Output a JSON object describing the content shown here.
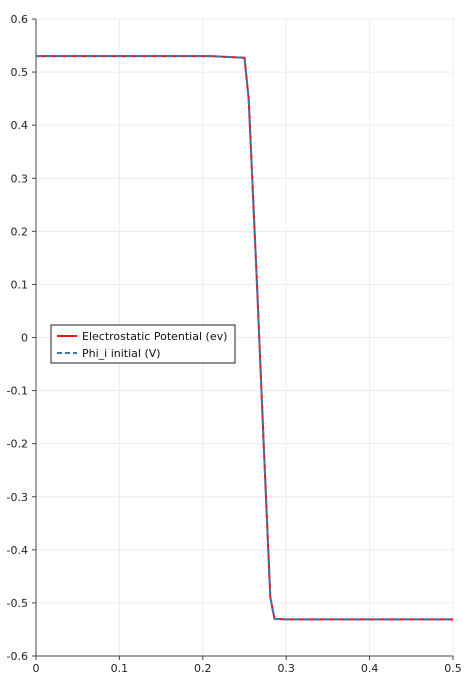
{
  "chart_data": {
    "type": "line",
    "title": "",
    "xlabel": "",
    "ylabel": "",
    "xlim": [
      0,
      0.5
    ],
    "ylim": [
      -0.6,
      0.6
    ],
    "x_ticks": [
      "0",
      "0.1",
      "0.2",
      "0.3",
      "0.4",
      "0.5"
    ],
    "y_ticks": [
      "0.6",
      "0.5",
      "0.4",
      "0.3",
      "0.2",
      "0.1",
      "0",
      "-0.1",
      "-0.2",
      "-0.3",
      "-0.4",
      "-0.5",
      "-0.6"
    ],
    "grid": true,
    "legend_position": "center-left",
    "series": [
      {
        "name": "Electrostatic Potential (ev)",
        "color": "#e8131b",
        "style": "solid",
        "points": [
          [
            0,
            0.53
          ],
          [
            0.21,
            0.53
          ],
          [
            0.25,
            0.527
          ],
          [
            0.255,
            0.45
          ],
          [
            0.265,
            0.1
          ],
          [
            0.273,
            -0.2
          ],
          [
            0.281,
            -0.49
          ],
          [
            0.286,
            -0.53
          ],
          [
            0.3,
            -0.531
          ],
          [
            0.5,
            -0.531
          ]
        ]
      },
      {
        "name": "Phi_i initial (V)",
        "color": "#3a78b6",
        "style": "dashed",
        "points": [
          [
            0,
            0.53
          ],
          [
            0.21,
            0.53
          ],
          [
            0.25,
            0.527
          ],
          [
            0.255,
            0.45
          ],
          [
            0.265,
            0.1
          ],
          [
            0.273,
            -0.2
          ],
          [
            0.281,
            -0.49
          ],
          [
            0.286,
            -0.53
          ],
          [
            0.3,
            -0.531
          ],
          [
            0.5,
            -0.531
          ]
        ]
      }
    ]
  }
}
